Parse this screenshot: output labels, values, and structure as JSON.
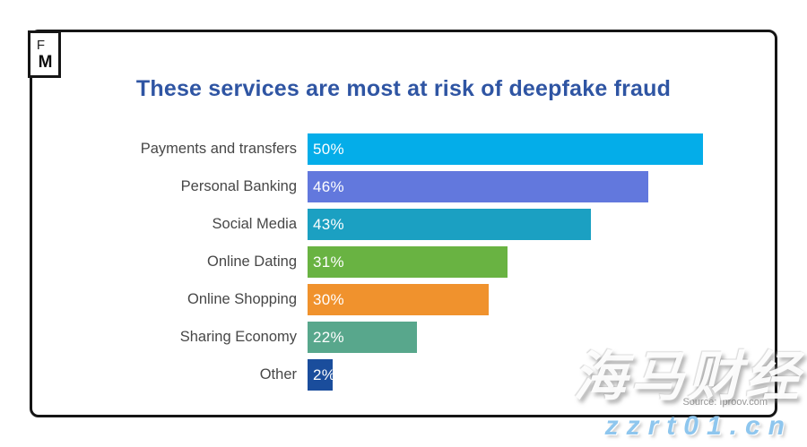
{
  "logo": {
    "line1": "F",
    "line2": "M"
  },
  "title": "These services are most at risk of deepfake fraud",
  "source": "Source: Iproov.com",
  "watermark": {
    "cjk": "海马财经",
    "site": "zzrt01.cn"
  },
  "theme": {
    "title_color": "#2F55A3",
    "label_color": "#474747",
    "frame_color": "#151515",
    "watermark_url_color": "#8EC6EE"
  },
  "chart_data": {
    "type": "bar",
    "orientation": "horizontal",
    "title": "These services are most at risk of deepfake fraud",
    "unit": "percent",
    "xlim": [
      0,
      50
    ],
    "grid": false,
    "legend": false,
    "value_labels_position": "inside-start",
    "categories": [
      "Payments and transfers",
      "Personal Banking",
      "Social Media",
      "Online Dating",
      "Online Shopping",
      "Sharing Economy",
      "Other"
    ],
    "values": [
      50,
      46,
      43,
      31,
      30,
      22,
      2
    ],
    "bars": [
      {
        "label": "Payments and transfers",
        "value": 50,
        "display": "50%",
        "color": "#04ADE9",
        "width_pct": 97.5
      },
      {
        "label": "Personal Banking",
        "value": 46,
        "display": "46%",
        "color": "#6278DD",
        "width_pct": 84.0
      },
      {
        "label": "Social Media",
        "value": 43,
        "display": "43%",
        "color": "#1BA0C2",
        "width_pct": 70.0
      },
      {
        "label": "Online Dating",
        "value": 31,
        "display": "31%",
        "color": "#69B342",
        "width_pct": 49.3
      },
      {
        "label": "Online Shopping",
        "value": 30,
        "display": "30%",
        "color": "#F0922D",
        "width_pct": 44.6
      },
      {
        "label": "Sharing Economy",
        "value": 22,
        "display": "22%",
        "color": "#58A78C",
        "width_pct": 26.9
      },
      {
        "label": "Other",
        "value": 2,
        "display": "2%",
        "color": "#1A4D9C",
        "width_pct": 6.3
      }
    ]
  }
}
